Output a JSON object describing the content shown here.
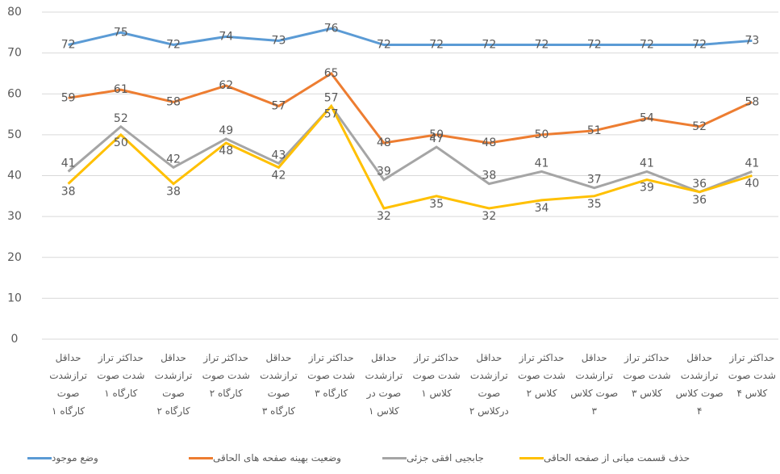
{
  "chart_data": {
    "type": "line",
    "categories": [
      "حداقل ترازشدت صوت کارگاه ۱",
      "حداکثر تراز شدت صوت کارگاه ۱",
      "حداقل ترازشدت صوت کارگاه ۲",
      "حداکثر تراز شدت صوت کارگاه ۲",
      "حداقل ترازشدت صوت کارگاه ۳",
      "حداکثر تراز شدت صوت کارگاه ۳",
      "حداقل ترازشدت صوت در کلاس ۱",
      "حداکثر تراز شدت صوت کلاس ۱",
      "حداقل ترازشدت صوت درکلاس ۲",
      "حداکثر تراز شدت صوت کلاس ۲",
      "حداقل ترازشدت صوت کلاس ۳",
      "حداکثر تراز شدت صوت کلاس ۳",
      "حداقل ترازشدت صوت کلاس ۴",
      "حداکثر تراز شدت صوت کلاس ۴"
    ],
    "series": [
      {
        "name": "وضع موجود",
        "color": "#5b9bd5",
        "values": [
          72,
          75,
          72,
          74,
          73,
          76,
          72,
          72,
          72,
          72,
          72,
          72,
          72,
          73
        ]
      },
      {
        "name": "وضعیت بهینه صفحه های الحاقی",
        "color": "#ed7d31",
        "values": [
          59,
          61,
          58,
          62,
          57,
          65,
          48,
          50,
          48,
          50,
          51,
          54,
          52,
          58
        ]
      },
      {
        "name": "جابجیی افقی جزئی",
        "color": "#a5a5a5",
        "values": [
          41,
          52,
          42,
          49,
          43,
          57,
          39,
          47,
          38,
          41,
          37,
          41,
          36,
          41
        ]
      },
      {
        "name": "حذف قسمت میانی از صفحه الحاقی",
        "color": "#ffc000",
        "values": [
          38,
          50,
          38,
          48,
          42,
          57,
          32,
          35,
          32,
          34,
          35,
          39,
          36,
          40
        ]
      }
    ],
    "ylim": [
      0,
      80
    ],
    "yticks": [
      0,
      10,
      20,
      30,
      40,
      50,
      60,
      70,
      80
    ],
    "grid": true
  }
}
